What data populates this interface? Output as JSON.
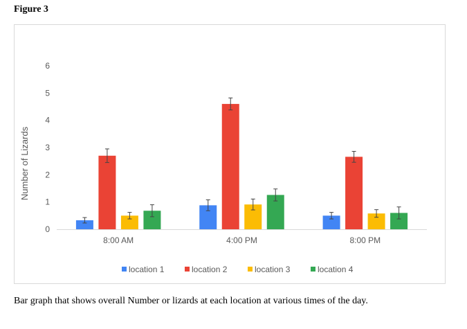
{
  "figure_title": "Figure 3",
  "caption": "Bar graph that shows overall Number or lizards at each location at various times of the day.",
  "chart_data": {
    "type": "bar",
    "title": "",
    "xlabel": "",
    "ylabel": "Number of Lizards",
    "ylim": [
      0,
      6
    ],
    "yticks": [
      0,
      1,
      2,
      3,
      4,
      5,
      6
    ],
    "grid": false,
    "legend_position": "bottom",
    "categories": [
      "8:00 AM",
      "4:00 PM",
      "8:00 PM"
    ],
    "series": [
      {
        "name": "location 1",
        "color": "#4285f4",
        "values": [
          0.33,
          0.88,
          0.5
        ],
        "errors": [
          0.1,
          0.2,
          0.12
        ]
      },
      {
        "name": "location 2",
        "color": "#ea4335",
        "values": [
          2.7,
          4.6,
          2.66
        ],
        "errors": [
          0.25,
          0.22,
          0.2
        ]
      },
      {
        "name": "location 3",
        "color": "#fbbc04",
        "values": [
          0.5,
          0.91,
          0.58
        ],
        "errors": [
          0.12,
          0.2,
          0.14
        ]
      },
      {
        "name": "location 4",
        "color": "#34a853",
        "values": [
          0.68,
          1.26,
          0.6
        ],
        "errors": [
          0.22,
          0.22,
          0.22
        ]
      }
    ]
  }
}
